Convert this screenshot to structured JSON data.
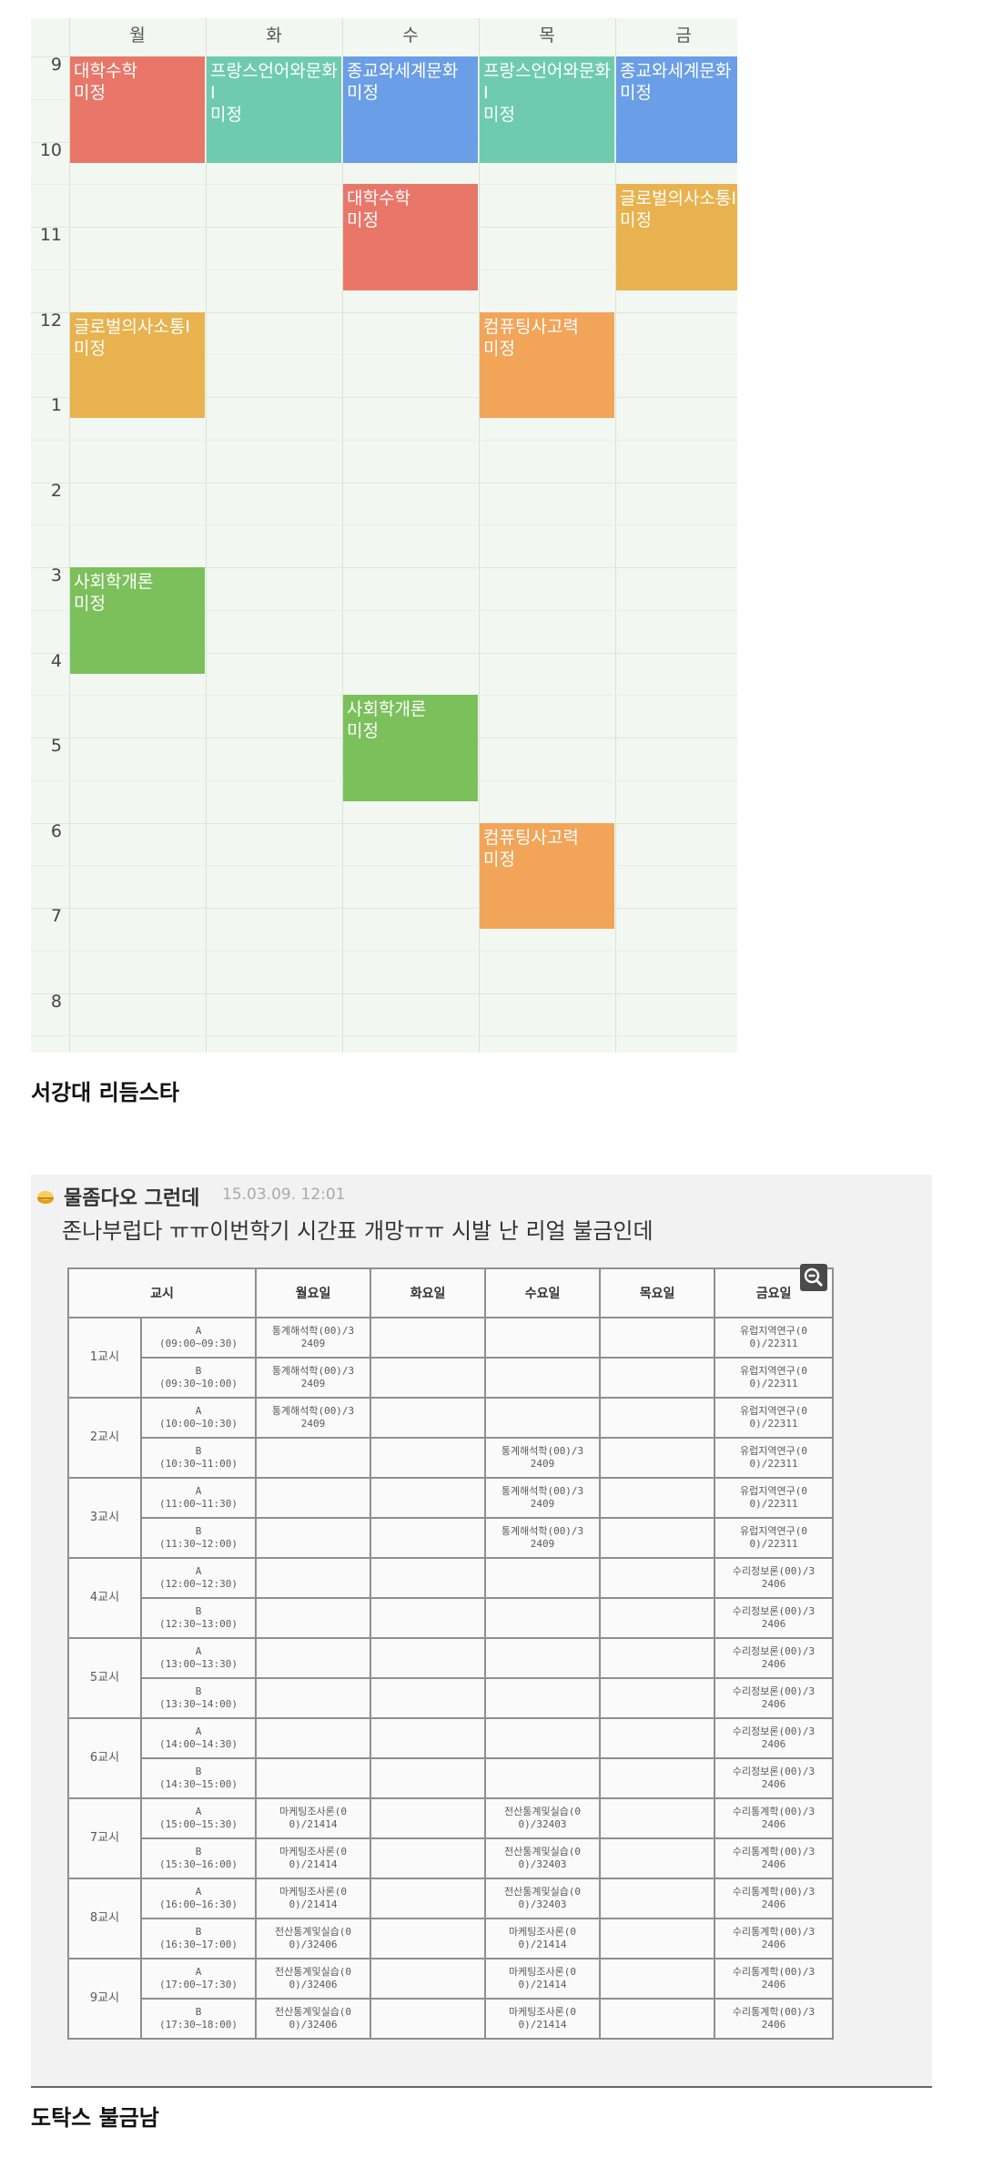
{
  "timetable1": {
    "days": [
      "월",
      "화",
      "수",
      "목",
      "금"
    ],
    "hours": [
      "9",
      "10",
      "11",
      "12",
      "1",
      "2",
      "3",
      "4",
      "5",
      "6",
      "7",
      "8"
    ],
    "courses": [
      {
        "name": "대학수학",
        "status": "미정",
        "day": 0,
        "start": 0,
        "end": 1.25,
        "color": "#e8776a"
      },
      {
        "name": "프랑스언어와문화I",
        "status": "미정",
        "day": 1,
        "start": 0,
        "end": 1.25,
        "color": "#6fcbae"
      },
      {
        "name": "종교와세계문화",
        "status": "미정",
        "day": 2,
        "start": 0,
        "end": 1.25,
        "color": "#6a9ee6"
      },
      {
        "name": "프랑스언어와문화I",
        "status": "미정",
        "day": 3,
        "start": 0,
        "end": 1.25,
        "color": "#6fcbae"
      },
      {
        "name": "종교와세계문화",
        "status": "미정",
        "day": 4,
        "start": 0,
        "end": 1.25,
        "color": "#6a9ee6"
      },
      {
        "name": "대학수학",
        "status": "미정",
        "day": 2,
        "start": 1.5,
        "end": 2.75,
        "color": "#e8776a"
      },
      {
        "name": "글로벌의사소통I",
        "status": "미정",
        "day": 4,
        "start": 1.5,
        "end": 2.75,
        "color": "#e8b24e"
      },
      {
        "name": "글로벌의사소통I",
        "status": "미정",
        "day": 0,
        "start": 3.0,
        "end": 4.25,
        "color": "#e8b24e"
      },
      {
        "name": "컴퓨팅사고력",
        "status": "미정",
        "day": 3,
        "start": 3.0,
        "end": 4.25,
        "color": "#f2a458"
      },
      {
        "name": "사회학개론",
        "status": "미정",
        "day": 0,
        "start": 6.0,
        "end": 7.25,
        "color": "#7cc05c"
      },
      {
        "name": "사회학개론",
        "status": "미정",
        "day": 2,
        "start": 7.5,
        "end": 8.75,
        "color": "#7cc05c"
      },
      {
        "name": "컴퓨팅사고력",
        "status": "미정",
        "day": 3,
        "start": 9.0,
        "end": 10.25,
        "color": "#f2a458"
      }
    ]
  },
  "caption1": "서강대 리듬스타",
  "post": {
    "nickname": "물좀다오 그런데",
    "date": "15.03.09. 12:01",
    "text": "존나부럽다 ㅠㅠ이번학기 시간표 개망ㅠㅠ 시발 난 리얼 불금인데",
    "zoom_icon": "zoom-out-icon"
  },
  "timetable2": {
    "headers": [
      "교시",
      "월요일",
      "화요일",
      "수요일",
      "목요일",
      "금요일"
    ],
    "periods": [
      {
        "label": "1교시",
        "rows": [
          {
            "slot": "A",
            "time": "(09:00~09:30)",
            "mon": [
              "통계해석학(00)/3",
              "2409"
            ],
            "tue": null,
            "wed": null,
            "thu": null,
            "fri": [
              "유럽지역연구(0",
              "0)/22311"
            ]
          },
          {
            "slot": "B",
            "time": "(09:30~10:00)",
            "mon": [
              "통계해석학(00)/3",
              "2409"
            ],
            "tue": null,
            "wed": null,
            "thu": null,
            "fri": [
              "유럽지역연구(0",
              "0)/22311"
            ]
          }
        ]
      },
      {
        "label": "2교시",
        "rows": [
          {
            "slot": "A",
            "time": "(10:00~10:30)",
            "mon": [
              "통계해석학(00)/3",
              "2409"
            ],
            "tue": null,
            "wed": null,
            "thu": null,
            "fri": [
              "유럽지역연구(0",
              "0)/22311"
            ]
          },
          {
            "slot": "B",
            "time": "(10:30~11:00)",
            "mon": null,
            "tue": null,
            "wed": [
              "통계해석학(00)/3",
              "2409"
            ],
            "thu": null,
            "fri": [
              "유럽지역연구(0",
              "0)/22311"
            ]
          }
        ]
      },
      {
        "label": "3교시",
        "rows": [
          {
            "slot": "A",
            "time": "(11:00~11:30)",
            "mon": null,
            "tue": null,
            "wed": [
              "통계해석학(00)/3",
              "2409"
            ],
            "thu": null,
            "fri": [
              "유럽지역연구(0",
              "0)/22311"
            ]
          },
          {
            "slot": "B",
            "time": "(11:30~12:00)",
            "mon": null,
            "tue": null,
            "wed": [
              "통계해석학(00)/3",
              "2409"
            ],
            "thu": null,
            "fri": [
              "유럽지역연구(0",
              "0)/22311"
            ]
          }
        ]
      },
      {
        "label": "4교시",
        "rows": [
          {
            "slot": "A",
            "time": "(12:00~12:30)",
            "mon": null,
            "tue": null,
            "wed": null,
            "thu": null,
            "fri": [
              "수리정보론(00)/3",
              "2406"
            ]
          },
          {
            "slot": "B",
            "time": "(12:30~13:00)",
            "mon": null,
            "tue": null,
            "wed": null,
            "thu": null,
            "fri": [
              "수리정보론(00)/3",
              "2406"
            ]
          }
        ]
      },
      {
        "label": "5교시",
        "rows": [
          {
            "slot": "A",
            "time": "(13:00~13:30)",
            "mon": null,
            "tue": null,
            "wed": null,
            "thu": null,
            "fri": [
              "수리정보론(00)/3",
              "2406"
            ]
          },
          {
            "slot": "B",
            "time": "(13:30~14:00)",
            "mon": null,
            "tue": null,
            "wed": null,
            "thu": null,
            "fri": [
              "수리정보론(00)/3",
              "2406"
            ]
          }
        ]
      },
      {
        "label": "6교시",
        "rows": [
          {
            "slot": "A",
            "time": "(14:00~14:30)",
            "mon": null,
            "tue": null,
            "wed": null,
            "thu": null,
            "fri": [
              "수리정보론(00)/3",
              "2406"
            ]
          },
          {
            "slot": "B",
            "time": "(14:30~15:00)",
            "mon": null,
            "tue": null,
            "wed": null,
            "thu": null,
            "fri": [
              "수리정보론(00)/3",
              "2406"
            ]
          }
        ]
      },
      {
        "label": "7교시",
        "rows": [
          {
            "slot": "A",
            "time": "(15:00~15:30)",
            "mon": [
              "마케팅조사론(0",
              "0)/21414"
            ],
            "tue": null,
            "wed": [
              "전산통계및실습(0",
              "0)/32403"
            ],
            "thu": null,
            "fri": [
              "수리통계학(00)/3",
              "2406"
            ]
          },
          {
            "slot": "B",
            "time": "(15:30~16:00)",
            "mon": [
              "마케팅조사론(0",
              "0)/21414"
            ],
            "tue": null,
            "wed": [
              "전산통계및실습(0",
              "0)/32403"
            ],
            "thu": null,
            "fri": [
              "수리통계학(00)/3",
              "2406"
            ]
          }
        ]
      },
      {
        "label": "8교시",
        "rows": [
          {
            "slot": "A",
            "time": "(16:00~16:30)",
            "mon": [
              "마케팅조사론(0",
              "0)/21414"
            ],
            "tue": null,
            "wed": [
              "전산통계및실습(0",
              "0)/32403"
            ],
            "thu": null,
            "fri": [
              "수리통계학(00)/3",
              "2406"
            ]
          },
          {
            "slot": "B",
            "time": "(16:30~17:00)",
            "mon": [
              "전산통계및실습(0",
              "0)/32406"
            ],
            "tue": null,
            "wed": [
              "마케팅조사론(0",
              "0)/21414"
            ],
            "thu": null,
            "fri": [
              "수리통계학(00)/3",
              "2406"
            ]
          }
        ]
      },
      {
        "label": "9교시",
        "rows": [
          {
            "slot": "A",
            "time": "(17:00~17:30)",
            "mon": [
              "전산통계및실습(0",
              "0)/32406"
            ],
            "tue": null,
            "wed": [
              "마케팅조사론(0",
              "0)/21414"
            ],
            "thu": null,
            "fri": [
              "수리통계학(00)/3",
              "2406"
            ]
          },
          {
            "slot": "B",
            "time": "(17:30~18:00)",
            "mon": [
              "전산통계및실습(0",
              "0)/32406"
            ],
            "tue": null,
            "wed": [
              "마케팅조사론(0",
              "0)/21414"
            ],
            "thu": null,
            "fri": [
              "수리통계학(00)/3",
              "2406"
            ]
          }
        ]
      }
    ]
  },
  "caption2": "도탁스 불금남"
}
